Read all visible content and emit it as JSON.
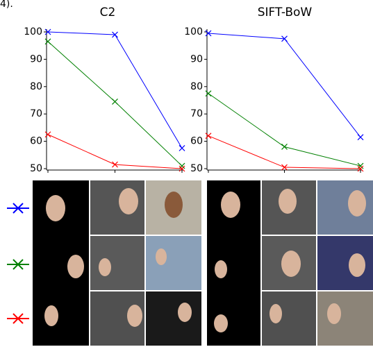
{
  "header_text": "4).",
  "chart_data": [
    {
      "type": "line",
      "title": "C2",
      "categories": [
        null,
        null,
        null
      ],
      "series": [
        {
          "color": "#0000ff",
          "values": [
            100,
            99,
            57.5
          ]
        },
        {
          "color": "#008000",
          "values": [
            96.5,
            74.5,
            51
          ]
        },
        {
          "color": "#ff0000",
          "values": [
            62.5,
            51.5,
            50
          ]
        }
      ],
      "ylim": [
        50,
        100
      ],
      "yticks": [
        50,
        60,
        70,
        80,
        90,
        100
      ]
    },
    {
      "type": "line",
      "title": "SIFT-BoW",
      "categories": [
        null,
        null,
        null
      ],
      "series": [
        {
          "color": "#0000ff",
          "values": [
            99.5,
            97.5,
            61.5
          ]
        },
        {
          "color": "#008000",
          "values": [
            77.5,
            58,
            51
          ]
        },
        {
          "color": "#ff0000",
          "values": [
            62,
            50.5,
            50
          ]
        }
      ],
      "ylim": [
        50,
        100
      ],
      "yticks": [
        50,
        60,
        70,
        80,
        90,
        100
      ]
    }
  ]
}
